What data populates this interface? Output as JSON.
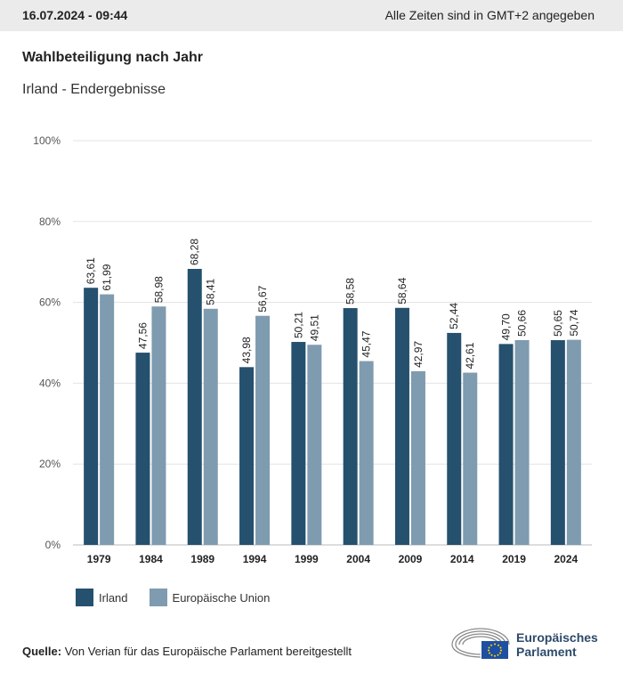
{
  "header": {
    "datetime": "16.07.2024 - 09:44",
    "timezone_note": "Alle Zeiten sind in GMT+2 angegeben"
  },
  "title": "Wahlbeteiligung nach Jahr",
  "subtitle": "Irland - Endergebnisse",
  "colors": {
    "irland": "#25506e",
    "eu": "#7f9bb0",
    "grid": "#e3e3e3",
    "axis_text": "#555555"
  },
  "chart_data": {
    "type": "bar",
    "categories": [
      "1979",
      "1984",
      "1989",
      "1994",
      "1999",
      "2004",
      "2009",
      "2014",
      "2019",
      "2024"
    ],
    "series": [
      {
        "name": "Irland",
        "values": [
          63.61,
          47.56,
          68.28,
          43.98,
          50.21,
          58.58,
          58.64,
          52.44,
          49.7,
          50.65
        ],
        "labels": [
          "63,61",
          "47,56",
          "68,28",
          "43,98",
          "50,21",
          "58,58",
          "58,64",
          "52,44",
          "49,70",
          "50,65"
        ]
      },
      {
        "name": "Europäische Union",
        "values": [
          61.99,
          58.98,
          58.41,
          56.67,
          49.51,
          45.47,
          42.97,
          42.61,
          50.66,
          50.74
        ],
        "labels": [
          "61,99",
          "58,98",
          "58,41",
          "56,67",
          "49,51",
          "45,47",
          "42,97",
          "42,61",
          "50,66",
          "50,74"
        ]
      }
    ],
    "ylim": [
      0,
      100
    ],
    "yticks": [
      0,
      20,
      40,
      60,
      80,
      100
    ],
    "ytick_labels": [
      "0%",
      "20%",
      "40%",
      "60%",
      "80%",
      "100%"
    ],
    "grid": true,
    "legend": "bottom-left"
  },
  "legend": {
    "items": [
      {
        "label": "Irland",
        "color": "#25506e"
      },
      {
        "label": "Europäische Union",
        "color": "#7f9bb0"
      }
    ]
  },
  "source": {
    "prefix": "Quelle:",
    "text": " Von Verian für das Europäische Parlament bereitgestellt"
  },
  "logo": {
    "line1": "Europäisches",
    "line2": "Parlament"
  }
}
